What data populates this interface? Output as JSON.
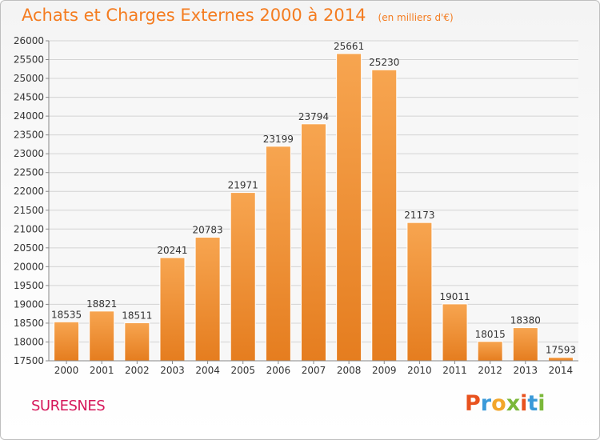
{
  "header": {
    "title": "Achats et Charges Externes 2000 à 2014",
    "subtitle": "(en milliers d'€)"
  },
  "footer": {
    "city": "SURESNES",
    "logo_text": "Proxiti"
  },
  "colors": {
    "title": "#f47c20",
    "bar_light": "#f7a550",
    "bar_dark": "#e8801f",
    "city": "#d6185b",
    "logo_letters": [
      "#e8521e",
      "#3a9ad9",
      "#f2a62b",
      "#7bb83a",
      "#e8521e",
      "#3a9ad9",
      "#7bb83a"
    ]
  },
  "chart_data": {
    "type": "bar",
    "title": "Achats et Charges Externes 2000 à 2014",
    "subtitle": "(en milliers d'€)",
    "categories": [
      "2000",
      "2001",
      "2002",
      "2003",
      "2004",
      "2005",
      "2006",
      "2007",
      "2008",
      "2009",
      "2010",
      "2011",
      "2012",
      "2013",
      "2014"
    ],
    "values": [
      18535,
      18821,
      18511,
      20241,
      20783,
      21971,
      23199,
      23794,
      25661,
      25230,
      21173,
      19011,
      18015,
      18380,
      17593
    ],
    "ylim": [
      17500,
      26000
    ],
    "yticks": [
      17500,
      18000,
      18500,
      19000,
      19500,
      20000,
      20500,
      21000,
      21500,
      22000,
      22500,
      23000,
      23500,
      24000,
      24500,
      25000,
      25500,
      26000
    ],
    "grid": true,
    "legend": "none"
  }
}
